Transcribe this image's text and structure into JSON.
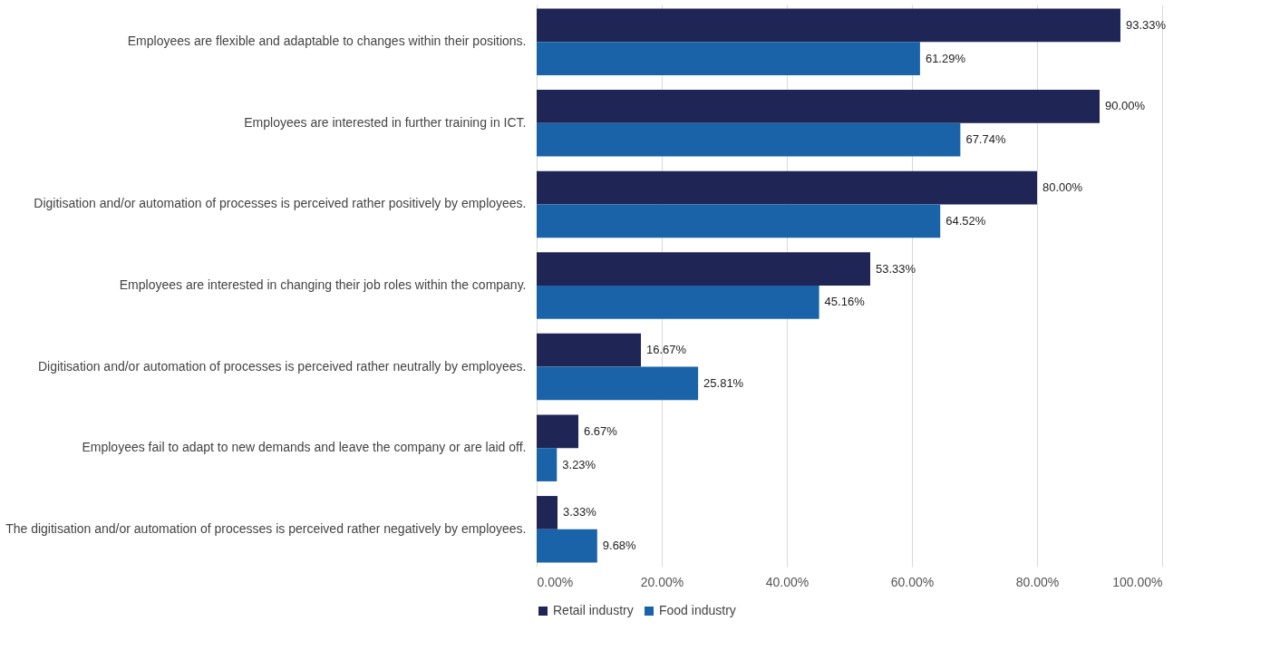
{
  "chart_data": {
    "type": "bar",
    "orientation": "horizontal",
    "categories": [
      "Employees are flexible and adaptable to changes within their positions.",
      "Employees are interested in further training in ICT.",
      "Digitisation and/or automation of processes is perceived rather positively by employees.",
      "Employees are interested in changing their job roles within the company.",
      "Digitisation and/or automation of processes is perceived rather neutrally by employees.",
      "Employees fail to adapt to new demands and leave the company or are laid off.",
      "The digitisation and/or automation of processes is perceived rather negatively by employees."
    ],
    "series": [
      {
        "name": "Retail industry",
        "color": "#1f2656",
        "values": [
          93.33,
          90.0,
          80.0,
          53.33,
          16.67,
          6.67,
          3.33
        ],
        "value_labels": [
          "93.33%",
          "90.00%",
          "80.00%",
          "53.33%",
          "16.67%",
          "6.67%",
          "3.33%"
        ]
      },
      {
        "name": "Food industry",
        "color": "#1a63a8",
        "values": [
          61.29,
          67.74,
          64.52,
          45.16,
          25.81,
          3.23,
          9.68
        ],
        "value_labels": [
          "61.29%",
          "67.74%",
          "64.52%",
          "45.16%",
          "25.81%",
          "3.23%",
          "9.68%"
        ]
      }
    ],
    "xlim": [
      0,
      100
    ],
    "xticks": [
      {
        "value": 0,
        "label": "0.00%"
      },
      {
        "value": 20,
        "label": "20.00%"
      },
      {
        "value": 40,
        "label": "40.00%"
      },
      {
        "value": 60,
        "label": "60.00%"
      },
      {
        "value": 80,
        "label": "80.00%"
      },
      {
        "value": 100,
        "label": "100.00%"
      }
    ],
    "grid": "x",
    "legend": "bottom"
  }
}
